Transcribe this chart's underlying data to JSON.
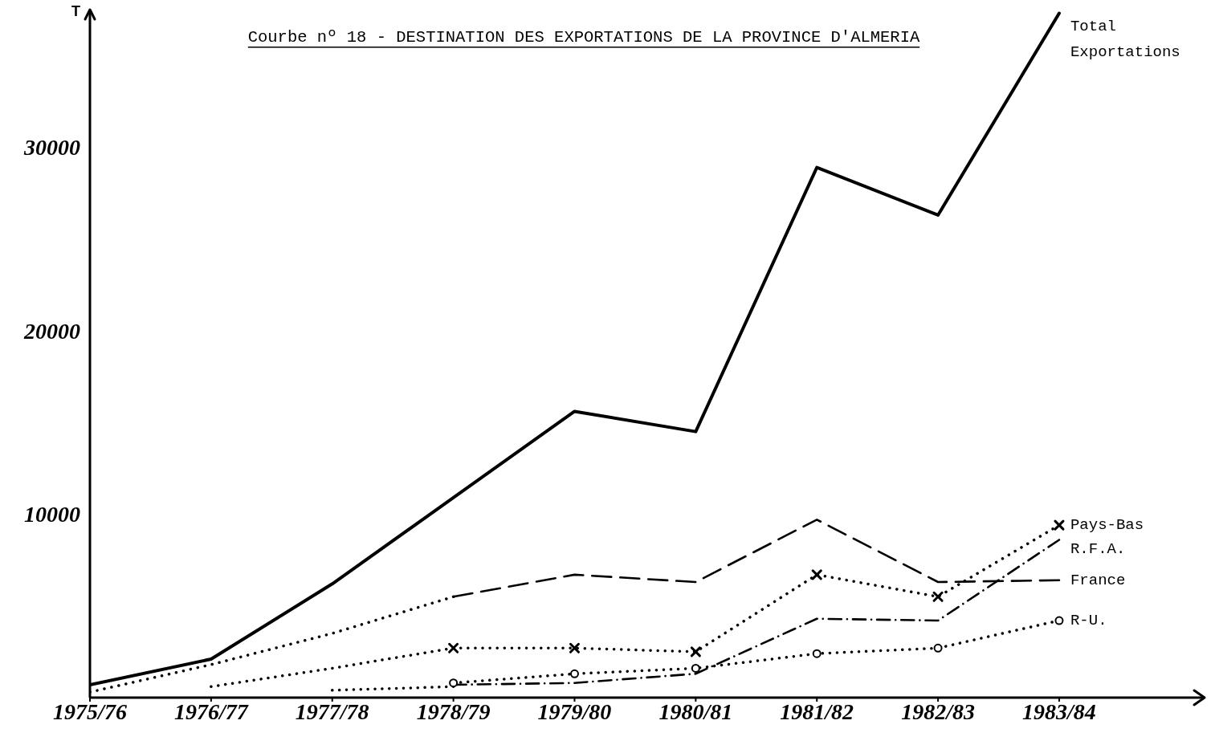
{
  "chart_data": {
    "type": "line",
    "title": "Courbe nº 18 - DESTINATION DES EXPORTATIONS DE LA PROVINCE D'ALMERIA",
    "ylabel": "T",
    "categories": [
      "1975/76",
      "1976/77",
      "1977/78",
      "1978/79",
      "1979/80",
      "1980/81",
      "1981/82",
      "1982/83",
      "1983/84"
    ],
    "ylim": [
      0,
      37500
    ],
    "yticks": [
      10000,
      20000,
      30000
    ],
    "series": [
      {
        "name": "Total Exportations",
        "color": "#000000",
        "line_style": "solid",
        "values": [
          700,
          2100,
          6200,
          10900,
          15600,
          14500,
          28900,
          26300,
          37300
        ]
      },
      {
        "color": "#000000",
        "line_style": "dotted",
        "values": [
          300,
          1800,
          3500,
          5500,
          null,
          null,
          null,
          null,
          null
        ]
      },
      {
        "name": "France",
        "color": "#000000",
        "line_style": "dashed",
        "values": [
          null,
          null,
          null,
          5500,
          6700,
          6300,
          9700,
          6300,
          6400
        ]
      },
      {
        "color": "#000000",
        "line_style": "dotted",
        "values": [
          null,
          600,
          1600,
          2700,
          null,
          null,
          null,
          null,
          null
        ]
      },
      {
        "name": "Pays-Bas",
        "color": "#000000",
        "line_style": "dotted",
        "marker": "cross",
        "values": [
          null,
          null,
          null,
          2700,
          2700,
          2500,
          6700,
          5500,
          9400
        ]
      },
      {
        "color": "#000000",
        "line_style": "dotted",
        "values": [
          null,
          null,
          400,
          600,
          null,
          null,
          null,
          null,
          null
        ]
      },
      {
        "name": "R.F.A.",
        "color": "#000000",
        "line_style": "dashdot",
        "values": [
          null,
          null,
          null,
          700,
          800,
          1300,
          4300,
          4200,
          8600
        ]
      },
      {
        "name": "R-U.",
        "color": "#000000",
        "line_style": "dotted",
        "marker": "circle",
        "values": [
          null,
          null,
          null,
          800,
          1300,
          1600,
          2400,
          2700,
          4200
        ]
      }
    ]
  }
}
